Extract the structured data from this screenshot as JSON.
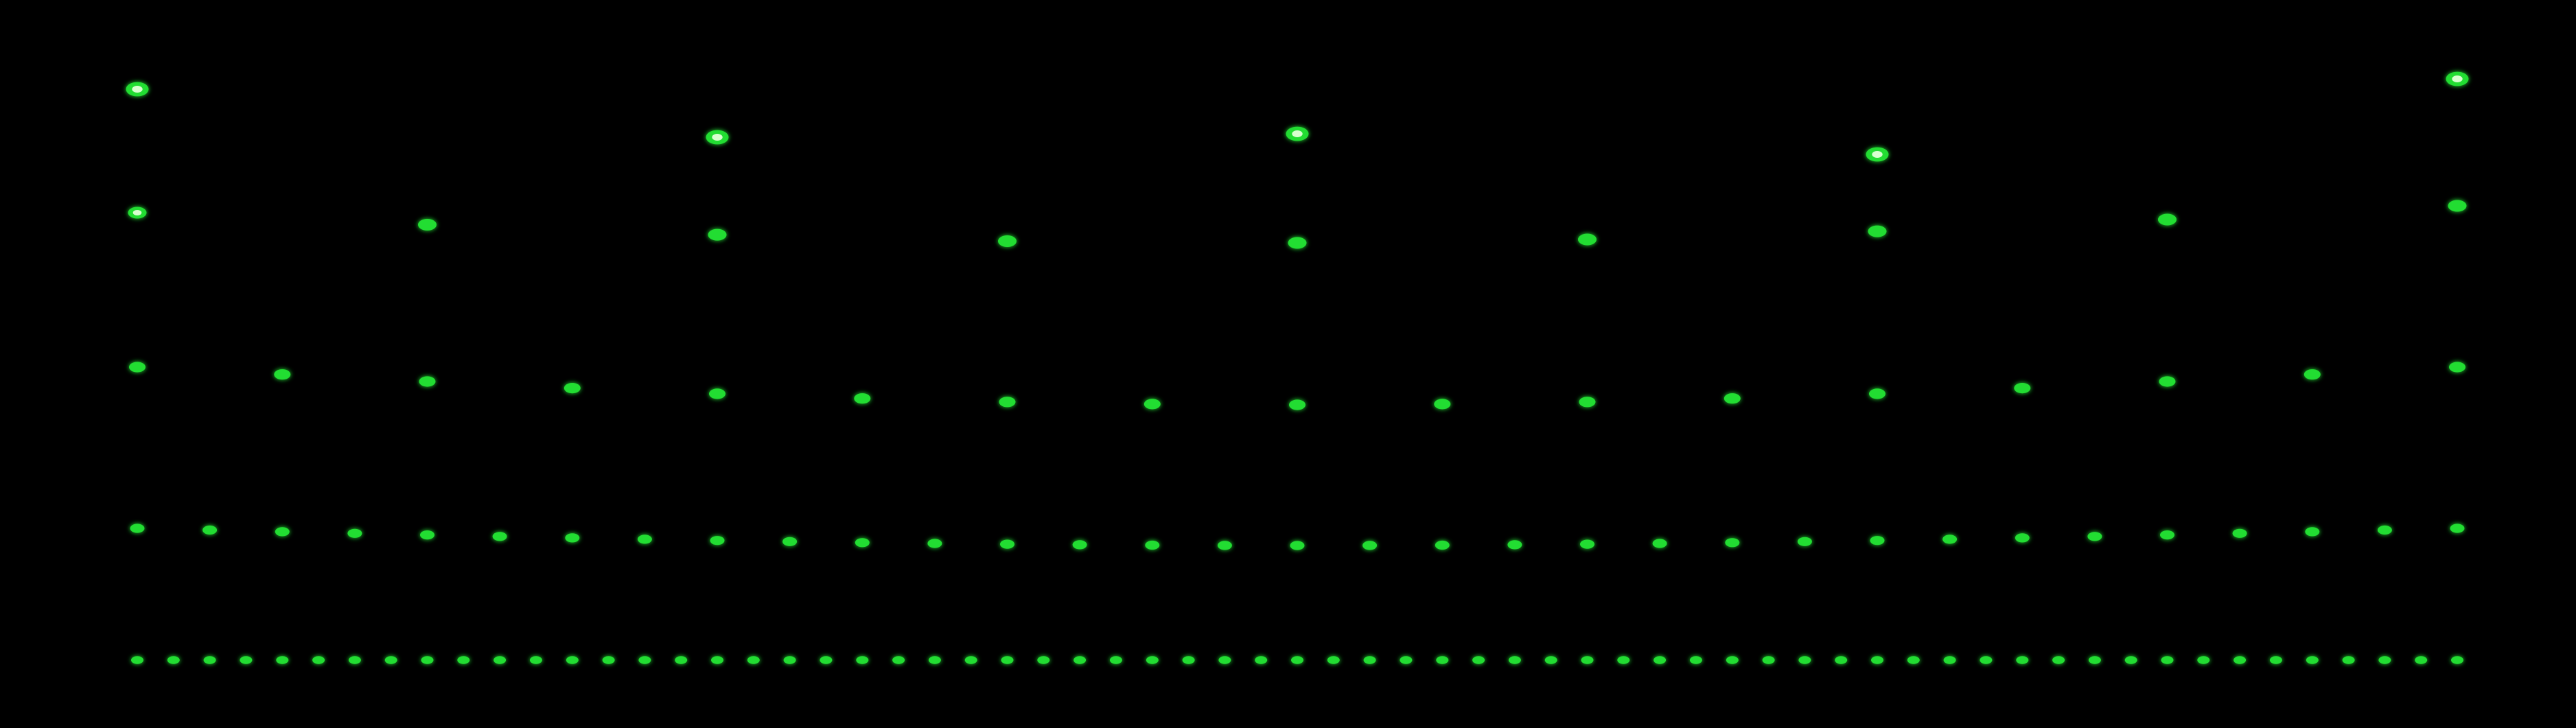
{
  "image": {
    "background_color": "#000000",
    "spot_color": "#22dd33",
    "spot_core_color": "#d8ffd0",
    "rows": [
      {
        "name": "row-1-spots",
        "spot_count": 5
      },
      {
        "name": "row-2-spots",
        "spot_count": 9
      },
      {
        "name": "row-3-spots",
        "spot_count": 17
      },
      {
        "name": "row-4-spots",
        "spot_count": 33
      },
      {
        "name": "row-5-spots",
        "spot_count": 65
      }
    ]
  }
}
